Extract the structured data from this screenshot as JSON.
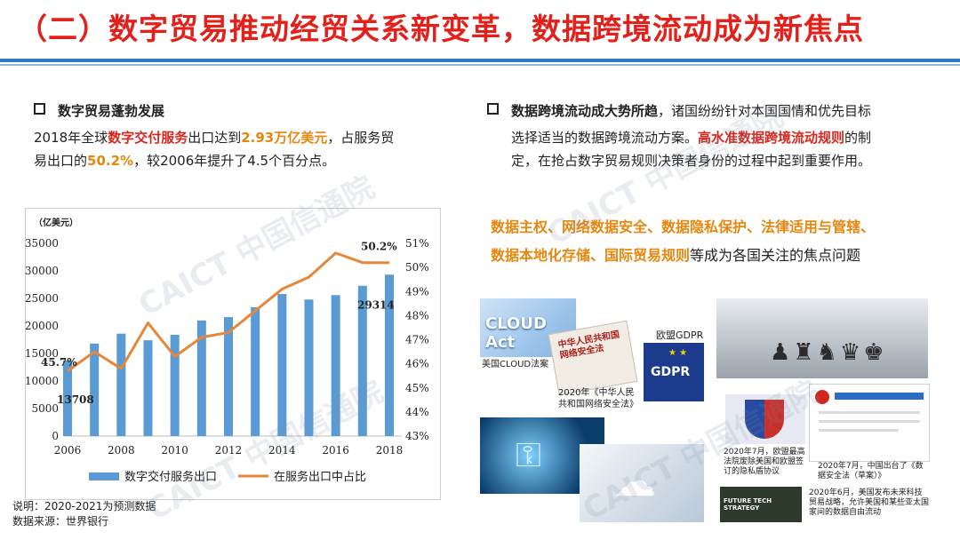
{
  "title": "（二）数字贸易推动经贸关系新变革，数据跨境流动成为新焦点",
  "left": {
    "heading": "数字贸易蓬勃发展",
    "line1_a": "2018年全球",
    "line1_b": "数字交付服务",
    "line1_c": "出口达到",
    "line1_d": "2.93万亿美元",
    "line1_e": "，占服务贸",
    "line2_a": "易出口的",
    "line2_b": "50.2%",
    "line2_c": "，较2006年提升了4.5个百分点。"
  },
  "right": {
    "heading": "数据跨境流动成大势所趋",
    "line1_rest": "，诸国纷纷针对本国国情和优先目标",
    "line2_a": "选择适当的数据跨境流动方案。",
    "line2_b": "高水准数据跨境流动规则",
    "line2_c": "的制",
    "line3": "定，在抢占数字贸易规则决策者身份的过程中起到重要作用。",
    "focus_line1": "数据主权、网络数据安全、数据隐私保护、法律适用与管辖、",
    "focus_line2_a": "数据本地化存储、国际贸易规则",
    "focus_line2_b": "等成为各国关注的焦点问题"
  },
  "images": {
    "cloud_act_text": "CLOUD Act",
    "cloud_act_caption": "美国CLOUD法案",
    "gdpr_label": "欧盟GDPR",
    "gdpr_text": "GDPR",
    "china_law_cover": "中华人民共和国网络安全法",
    "china_law_caption": "2020年《中华人民共和国网络安全法》",
    "privacy_shield_caption": "2020年7月，欧盟最高法院废除美国和欧盟签订的隐私盾协议",
    "data_security_caption": "2020年7月，中国出台了《数据安全法（草案）》",
    "future_tech_text": "FUTURE TECH STRATEGY",
    "us_strategy_caption": "2020年6月，美国发布未来科技贸易战略，允许美国和某些亚太国家间的数据自由流动"
  },
  "note": {
    "line1": "说明：2020-2021为预测数据",
    "line2": "数据来源：世界银行"
  },
  "watermark": "CAICT 中国信通院",
  "colors": {
    "title_red": "#e4201a",
    "bar_blue": "#5b9bd5",
    "line_orange": "#e6873a",
    "accent_orange": "#e8860d",
    "rule_blue": "#2f76c9"
  },
  "chart_data": {
    "type": "bar+line",
    "unit_label": "（亿美元）",
    "x": [
      2006,
      2007,
      2008,
      2009,
      2010,
      2011,
      2012,
      2013,
      2014,
      2015,
      2016,
      2017,
      2018
    ],
    "x_ticks": [
      "2006",
      "2008",
      "2010",
      "2012",
      "2014",
      "2016",
      "2018"
    ],
    "y_ticks": [
      0,
      5000,
      10000,
      15000,
      20000,
      25000,
      30000,
      35000
    ],
    "y2_ticks": [
      "43%",
      "44%",
      "45%",
      "46%",
      "47%",
      "48%",
      "49%",
      "50%",
      "51%"
    ],
    "ylim": [
      0,
      35000
    ],
    "y2lim": [
      43,
      51
    ],
    "series": [
      {
        "name": "数字交付服务出口",
        "type": "bar",
        "values": [
          13708,
          16800,
          18600,
          17400,
          18400,
          21000,
          21600,
          23400,
          25800,
          24800,
          25600,
          27300,
          29314
        ]
      },
      {
        "name": "在服务出口中占比",
        "type": "line",
        "values": [
          45.7,
          46.5,
          45.8,
          47.7,
          46.3,
          47.1,
          47.3,
          48.2,
          49.1,
          49.6,
          50.6,
          50.2,
          50.2
        ]
      }
    ],
    "data_labels": {
      "bar_first": "13708",
      "bar_last": "29314",
      "line_first": "45.7%",
      "line_last": "50.2%"
    }
  }
}
